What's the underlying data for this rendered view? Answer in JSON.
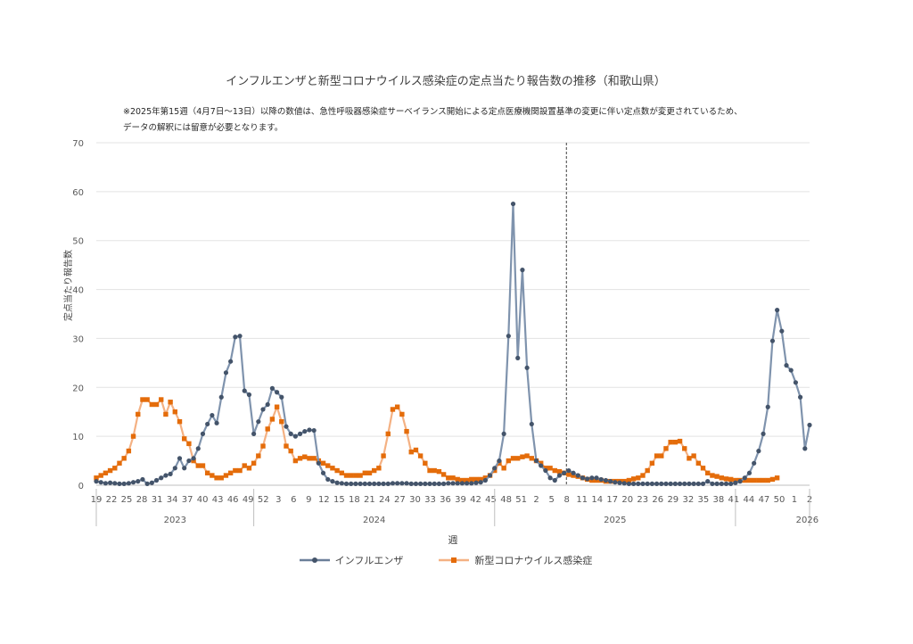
{
  "chart_data": {
    "type": "line",
    "title": "インフルエンザと新型コロナウイルス感染症の定点当たり報告数の推移（和歌山県）",
    "notes": [
      "※2025年第15週（4月7日～13日）以降の数値は、急性呼吸器感染症サーベイランス開始による定点医療機関設置基準の変更に伴い定点数が変更されているため、",
      "データの解釈には留意が必要となります。"
    ],
    "xlabel": "週",
    "ylabel": "定点当たり報告数",
    "ylim": [
      0,
      70
    ],
    "yticks": [
      "0",
      "10",
      "20",
      "30",
      "40",
      "50",
      "60",
      "70"
    ],
    "grid": true,
    "legend_position": "bottom",
    "year_labels": [
      "2023",
      "2024",
      "2025",
      "2026"
    ],
    "week_tick_labels": [
      "19",
      "22",
      "25",
      "28",
      "31",
      "34",
      "37",
      "40",
      "43",
      "46",
      "49",
      "52",
      "3",
      "6",
      "9",
      "12",
      "15",
      "18",
      "21",
      "24",
      "27",
      "30",
      "33",
      "36",
      "39",
      "42",
      "45",
      "48",
      "51",
      "2",
      "5",
      "8",
      "11",
      "14",
      "17",
      "20",
      "23",
      "26",
      "29",
      "32",
      "35",
      "38",
      "41",
      "44",
      "47",
      "50",
      "1",
      "2"
    ],
    "divider_note_week": "2025年第15週",
    "series": [
      {
        "name": "インフルエンザ",
        "color": "#6b7f99",
        "marker": "circle",
        "values": [
          0.8,
          0.6,
          0.4,
          0.5,
          0.4,
          0.3,
          0.3,
          0.4,
          0.6,
          0.8,
          1.2,
          0.3,
          0.5,
          1.0,
          1.5,
          2.0,
          2.3,
          3.5,
          5.5,
          3.5,
          5.0,
          5.5,
          7.5,
          10.5,
          12.5,
          14.3,
          12.7,
          18.0,
          23.0,
          25.3,
          30.3,
          30.5,
          19.3,
          18.5,
          10.5,
          13.0,
          15.5,
          16.5,
          19.8,
          19.0,
          18.0,
          12.0,
          10.5,
          10.0,
          10.5,
          11.0,
          11.3,
          11.2,
          4.5,
          2.5,
          1.2,
          0.8,
          0.5,
          0.4,
          0.3,
          0.3,
          0.3,
          0.3,
          0.3,
          0.3,
          0.3,
          0.3,
          0.3,
          0.3,
          0.4,
          0.4,
          0.4,
          0.4,
          0.3,
          0.3,
          0.3,
          0.3,
          0.3,
          0.3,
          0.3,
          0.3,
          0.4,
          0.4,
          0.4,
          0.4,
          0.4,
          0.4,
          0.5,
          0.6,
          1.0,
          2.0,
          3.5,
          5.0,
          10.5,
          30.5,
          57.5,
          26.0,
          44.0,
          24.0,
          12.5,
          5.0,
          4.0,
          3.0,
          1.5,
          1.0,
          2.0,
          2.5,
          3.0,
          2.5,
          2.0,
          1.5,
          1.3,
          1.5,
          1.5,
          1.2,
          1.0,
          0.8,
          0.6,
          0.5,
          0.4,
          0.3,
          0.3,
          0.3,
          0.3,
          0.3,
          0.3,
          0.3,
          0.3,
          0.3,
          0.3,
          0.3,
          0.3,
          0.3,
          0.3,
          0.3,
          0.3,
          0.3,
          0.8,
          0.3,
          0.3,
          0.3,
          0.3,
          0.3,
          0.5,
          0.8,
          1.5,
          2.5,
          4.5,
          7.0,
          10.5,
          16.0,
          29.5,
          35.8,
          31.5,
          24.5,
          23.5,
          21.0,
          18.0,
          7.5,
          12.3
        ]
      },
      {
        "name": "新型コロナウイルス感染症",
        "color": "#e46c0a",
        "marker": "square",
        "values": [
          1.5,
          2.0,
          2.5,
          3.0,
          3.5,
          4.5,
          5.5,
          7.0,
          10.0,
          14.5,
          17.5,
          17.5,
          16.5,
          16.5,
          17.5,
          14.5,
          17.0,
          15.0,
          13.0,
          9.5,
          8.5,
          5.0,
          4.0,
          4.0,
          2.5,
          2.0,
          1.5,
          1.5,
          2.0,
          2.5,
          3.0,
          3.0,
          4.0,
          3.5,
          4.5,
          6.0,
          8.0,
          11.5,
          13.5,
          16.0,
          13.0,
          8.0,
          7.0,
          5.0,
          5.5,
          5.8,
          5.5,
          5.5,
          5.0,
          4.5,
          4.0,
          3.5,
          3.0,
          2.5,
          2.0,
          2.0,
          2.0,
          2.0,
          2.5,
          2.5,
          3.0,
          3.5,
          6.0,
          10.5,
          15.5,
          16.0,
          14.5,
          11.0,
          6.8,
          7.2,
          6.0,
          4.5,
          3.0,
          3.0,
          2.8,
          2.2,
          1.5,
          1.5,
          1.2,
          1.0,
          1.0,
          1.2,
          1.2,
          1.2,
          1.5,
          2.0,
          3.0,
          4.5,
          3.5,
          5.0,
          5.5,
          5.5,
          5.8,
          6.0,
          5.5,
          5.0,
          4.5,
          3.5,
          3.5,
          3.0,
          2.8,
          2.5,
          2.2,
          2.0,
          1.8,
          1.5,
          1.2,
          1.0,
          1.0,
          1.0,
          0.8,
          0.8,
          0.8,
          0.8,
          0.8,
          1.0,
          1.3,
          1.5,
          2.0,
          3.0,
          4.5,
          6.0,
          6.0,
          7.5,
          8.8,
          8.8,
          9.0,
          7.5,
          5.5,
          6.0,
          4.5,
          3.5,
          2.5,
          2.0,
          1.8,
          1.5,
          1.3,
          1.2,
          1.0,
          1.0,
          1.0,
          1.0,
          1.0,
          1.0,
          1.0,
          1.0,
          1.2,
          1.5
        ]
      }
    ]
  }
}
